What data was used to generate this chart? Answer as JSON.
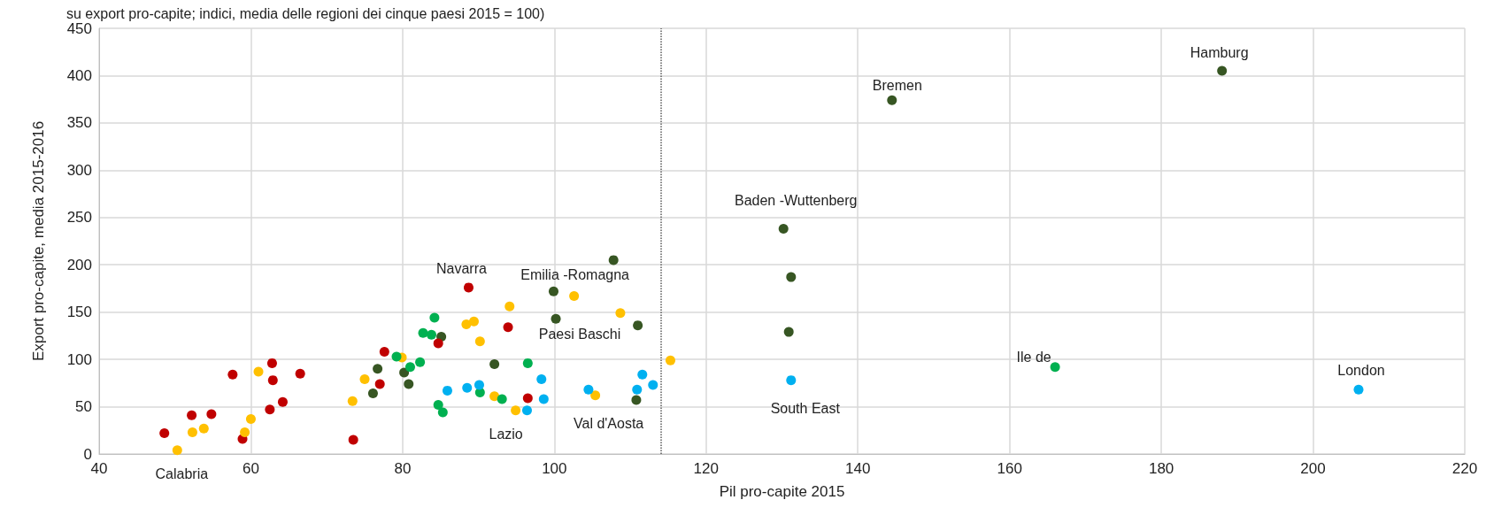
{
  "chart_data": {
    "type": "scatter",
    "title": "su export pro-capite; indici, media delle regioni dei cinque paesi 2015 = 100)",
    "xlabel": "Pil pro-capite 2015",
    "ylabel": "Export pro-capite, media 2015-2016",
    "xlim": [
      40,
      220
    ],
    "xticks": [
      40,
      60,
      80,
      100,
      120,
      140,
      160,
      180,
      200,
      220
    ],
    "ylim": [
      0,
      450
    ],
    "yticks": [
      0,
      50,
      100,
      150,
      200,
      250,
      300,
      350,
      400,
      450
    ],
    "grid": true,
    "marker": "circle",
    "series": [
      {
        "color": "#375623",
        "x": [
          188,
          144.5,
          130.2,
          107.8,
          131.2,
          99.9,
          100.2,
          111,
          130.9,
          92.1,
          110.8,
          85.1,
          76.7,
          80.2,
          80.8,
          76.1
        ],
        "values": [
          405,
          374,
          238,
          205,
          187,
          172,
          143,
          136,
          129,
          95,
          57,
          124,
          90,
          86,
          74,
          64
        ]
      },
      {
        "color": "#c00000",
        "x": [
          88.7,
          93.9,
          84.7,
          77.6,
          96.5,
          62.8,
          57.6,
          62.9,
          66.5,
          77,
          64.2,
          62.5,
          52.2,
          54.8,
          48.6,
          58.9,
          73.5
        ],
        "values": [
          176,
          134,
          117,
          108,
          59,
          96,
          84,
          78,
          85,
          74,
          55,
          47,
          41,
          42,
          22,
          16,
          15
        ]
      },
      {
        "color": "#ffc000",
        "x": [
          102.6,
          94.1,
          108.7,
          88.4,
          89.4,
          90.2,
          79.9,
          115.3,
          61,
          75,
          73.4,
          92.1,
          105.4,
          94.9,
          60,
          59.2,
          53.8,
          52.3,
          50.3
        ],
        "values": [
          167,
          156,
          149,
          137,
          140,
          119,
          102,
          99,
          87,
          79,
          56,
          61,
          62,
          46,
          37,
          23,
          27,
          23,
          4
        ]
      },
      {
        "color": "#00b050",
        "x": [
          166,
          84.2,
          82.7,
          83.8,
          79.2,
          82.3,
          81,
          96.5,
          90.2,
          93.1,
          84.7,
          85.3
        ],
        "values": [
          92,
          144,
          128,
          126,
          103,
          97,
          92,
          96,
          65,
          58,
          52,
          44
        ]
      },
      {
        "color": "#00b0f0",
        "x": [
          206,
          131.2,
          98.3,
          111.6,
          113,
          104.5,
          110.9,
          98.6,
          96.4,
          85.9,
          88.5,
          90.1
        ],
        "values": [
          68,
          78,
          79,
          84,
          73,
          68,
          68,
          58,
          46,
          67,
          70,
          73
        ]
      }
    ],
    "ref_lines": [
      {
        "axis": "x",
        "value": 114,
        "color": "#595959",
        "line_style": "dotted"
      }
    ],
    "annotations": [
      {
        "text": "Hamburg",
        "x": 188,
        "y": 405
      },
      {
        "text": "Bremen",
        "x": 144.5,
        "y": 374
      },
      {
        "text": "Baden -Wuttenberg",
        "x": 130.2,
        "y": 238
      },
      {
        "text": "Emilia -Romagna",
        "x": 102.6,
        "y": 167
      },
      {
        "text": "Navarra",
        "x": 88.7,
        "y": 176
      },
      {
        "text": "Paesi Baschi",
        "x": 93.9,
        "y": 134
      },
      {
        "text": "Ile de",
        "x": 166,
        "y": 92
      },
      {
        "text": "London",
        "x": 206,
        "y": 68
      },
      {
        "text": "South East",
        "x": 131.2,
        "y": 78
      },
      {
        "text": "Val d'Aosta",
        "x": 105.4,
        "y": 62
      },
      {
        "text": "Lazio",
        "x": 94.9,
        "y": 46
      },
      {
        "text": "Calabria",
        "x": 50.3,
        "y": 4
      }
    ]
  }
}
